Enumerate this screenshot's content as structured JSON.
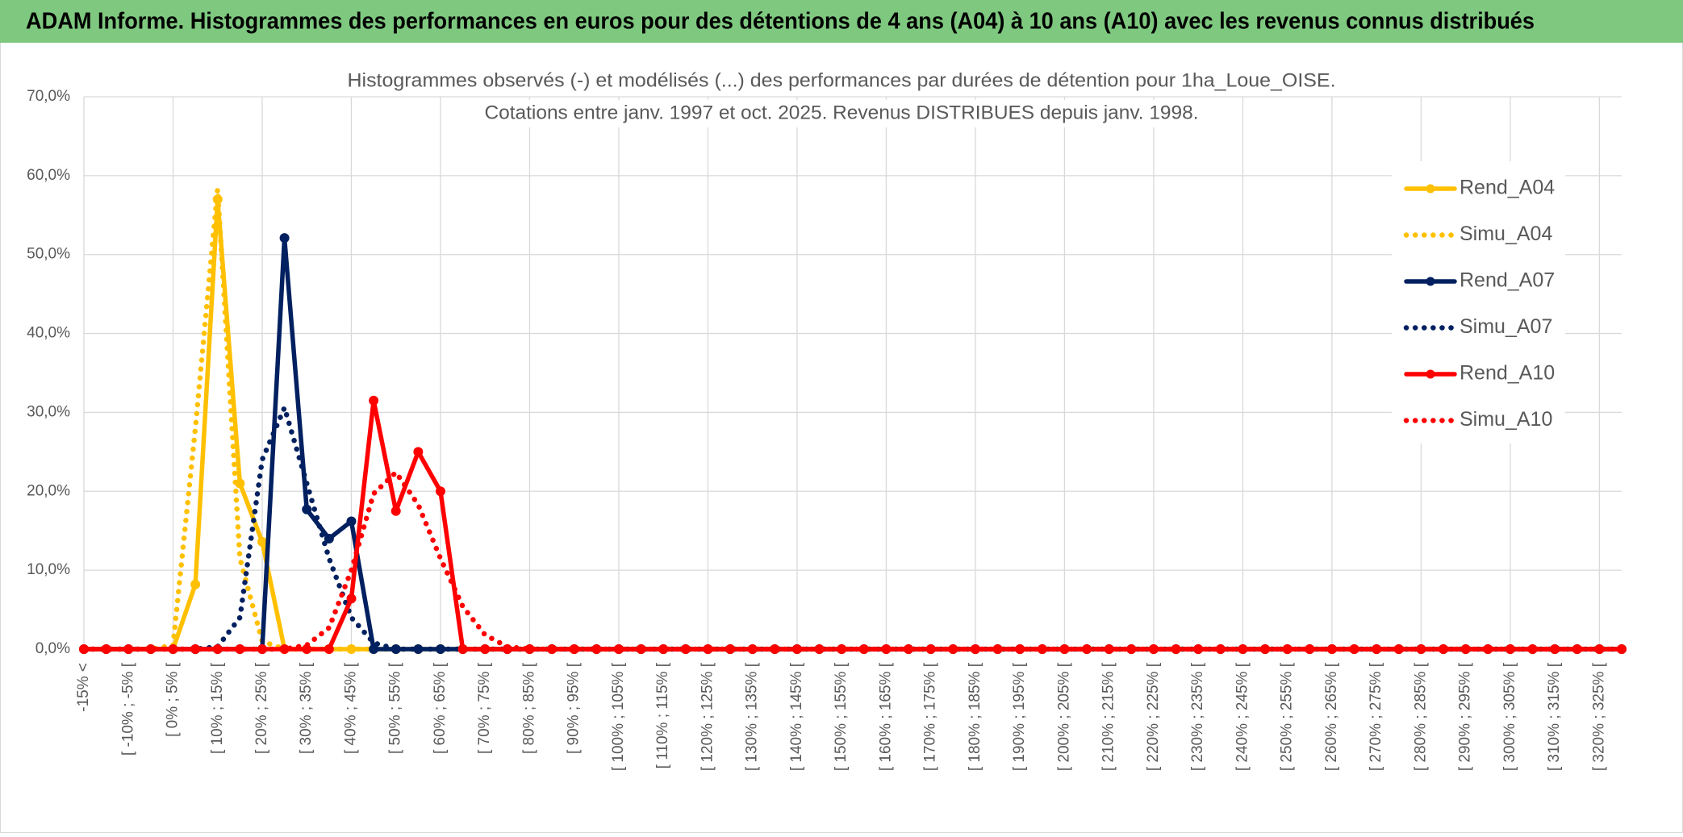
{
  "header": {
    "title": "ADAM Informe. Histogrammes des performances en euros pour des détentions de 4 ans (A04) à 10 ans (A10) avec les revenus connus distribués"
  },
  "chart_data": {
    "type": "line",
    "title": "Histogrammes observés (-) et modélisés (...) des performances par durées de détention pour 1ha_Loue_OISE.",
    "subtitle": "Cotations entre janv. 1997 et oct. 2025. Revenus DISTRIBUES depuis janv. 1998.",
    "categories": [
      "-15% <",
      null,
      "[ -10% ; -5% [",
      null,
      "[ 0% ; 5% [",
      null,
      "[ 10% ; 15% [",
      null,
      "[ 20% ; 25% [",
      null,
      "[ 30% ; 35% [",
      null,
      "[ 40% ; 45% [",
      null,
      "[ 50% ; 55% [",
      null,
      "[ 60% ; 65% [",
      null,
      "[ 70% ; 75% [",
      null,
      "[ 80% ; 85% [",
      null,
      "[ 90% ; 95% [",
      null,
      "[ 100% ; 105% [",
      null,
      "[ 110% ; 115% [",
      null,
      "[ 120% ; 125% [",
      null,
      "[ 130% ; 135% [",
      null,
      "[ 140% ; 145% [",
      null,
      "[ 150% ; 155% [",
      null,
      "[ 160% ; 165% [",
      null,
      "[ 170% ; 175% [",
      null,
      "[ 180% ; 185% [",
      null,
      "[ 190% ; 195% [",
      null,
      "[ 200% ; 205% [",
      null,
      "[ 210% ; 215% [",
      null,
      "[ 220% ; 225% [",
      null,
      "[ 230% ; 235% [",
      null,
      "[ 240% ; 245% [",
      null,
      "[ 250% ; 255% [",
      null,
      "[ 260% ; 265% [",
      null,
      "[ 270% ; 275% [",
      null,
      "[ 280% ; 285% [",
      null,
      "[ 290% ; 295% [",
      null,
      "[ 300% ; 305% [",
      null,
      "[ 310% ; 315% [",
      null,
      "[ 320% ; 325% [",
      null
    ],
    "series": [
      {
        "name": "Rend_A04",
        "color": "#FFC000",
        "style": "solid",
        "marker": true,
        "values": [
          0,
          0,
          0,
          0,
          0,
          8.2,
          57,
          21,
          13.6,
          0,
          0,
          0,
          0,
          0,
          0,
          0,
          0,
          0,
          0,
          0,
          0,
          0,
          0,
          0,
          0,
          0,
          0,
          0,
          0,
          0,
          0,
          0,
          0,
          0,
          0,
          0,
          0,
          0,
          0,
          0,
          0,
          0,
          0,
          0,
          0,
          0,
          0,
          0,
          0,
          0,
          0,
          0,
          0,
          0,
          0,
          0,
          0,
          0,
          0,
          0,
          0,
          0,
          0,
          0,
          0,
          0,
          0,
          0,
          0,
          0
        ]
      },
      {
        "name": "Simu_A04",
        "color": "#FFC000",
        "style": "dotted",
        "marker": false,
        "values": [
          0,
          0,
          0,
          0,
          0.5,
          28,
          58.3,
          11.5,
          1,
          0,
          0,
          0,
          0,
          0,
          0,
          0,
          0,
          0,
          0,
          0,
          0,
          0,
          0,
          0,
          0,
          0,
          0,
          0,
          0,
          0,
          0,
          0,
          0,
          0,
          0,
          0,
          0,
          0,
          0,
          0,
          0,
          0,
          0,
          0,
          0,
          0,
          0,
          0,
          0,
          0,
          0,
          0,
          0,
          0,
          0,
          0,
          0,
          0,
          0,
          0,
          0,
          0,
          0,
          0,
          0,
          0,
          0,
          0,
          0,
          0
        ]
      },
      {
        "name": "Rend_A07",
        "color": "#002060",
        "style": "solid",
        "marker": true,
        "values": [
          0,
          0,
          0,
          0,
          0,
          0,
          0,
          0,
          0,
          52.1,
          17.7,
          14,
          16.2,
          0,
          0,
          0,
          0,
          0,
          0,
          0,
          0,
          0,
          0,
          0,
          0,
          0,
          0,
          0,
          0,
          0,
          0,
          0,
          0,
          0,
          0,
          0,
          0,
          0,
          0,
          0,
          0,
          0,
          0,
          0,
          0,
          0,
          0,
          0,
          0,
          0,
          0,
          0,
          0,
          0,
          0,
          0,
          0,
          0,
          0,
          0,
          0,
          0,
          0,
          0,
          0,
          0,
          0,
          0,
          0,
          0
        ]
      },
      {
        "name": "Simu_A07",
        "color": "#002060",
        "style": "dotted",
        "marker": false,
        "values": [
          0,
          0,
          0,
          0,
          0,
          0,
          0.3,
          4,
          24,
          30.6,
          21,
          11.5,
          4,
          0.8,
          0,
          0,
          0,
          0,
          0,
          0,
          0,
          0,
          0,
          0,
          0,
          0,
          0,
          0,
          0,
          0,
          0,
          0,
          0,
          0,
          0,
          0,
          0,
          0,
          0,
          0,
          0,
          0,
          0,
          0,
          0,
          0,
          0,
          0,
          0,
          0,
          0,
          0,
          0,
          0,
          0,
          0,
          0,
          0,
          0,
          0,
          0,
          0,
          0,
          0,
          0,
          0,
          0,
          0,
          0,
          0
        ]
      },
      {
        "name": "Rend_A10",
        "color": "#FF0000",
        "style": "solid",
        "marker": true,
        "values": [
          0,
          0,
          0,
          0,
          0,
          0,
          0,
          0,
          0,
          0,
          0,
          0,
          6.4,
          31.5,
          17.5,
          25,
          20,
          0,
          0,
          0,
          0,
          0,
          0,
          0,
          0,
          0,
          0,
          0,
          0,
          0,
          0,
          0,
          0,
          0,
          0,
          0,
          0,
          0,
          0,
          0,
          0,
          0,
          0,
          0,
          0,
          0,
          0,
          0,
          0,
          0,
          0,
          0,
          0,
          0,
          0,
          0,
          0,
          0,
          0,
          0,
          0,
          0,
          0,
          0,
          0,
          0,
          0,
          0,
          0,
          0
        ]
      },
      {
        "name": "Simu_A10",
        "color": "#FF0000",
        "style": "dotted",
        "marker": false,
        "values": [
          0,
          0,
          0,
          0,
          0,
          0,
          0,
          0,
          0,
          0,
          0.5,
          2.7,
          10,
          19.7,
          22.4,
          18.3,
          11.5,
          5.4,
          1.8,
          0.3,
          0,
          0,
          0,
          0,
          0,
          0,
          0,
          0,
          0,
          0,
          0,
          0,
          0,
          0,
          0,
          0,
          0,
          0,
          0,
          0,
          0,
          0,
          0,
          0,
          0,
          0,
          0,
          0,
          0,
          0,
          0,
          0,
          0,
          0,
          0,
          0,
          0,
          0,
          0,
          0,
          0,
          0,
          0,
          0,
          0,
          0,
          0,
          0,
          0,
          0
        ]
      }
    ],
    "ylim": [
      0,
      70
    ],
    "yticks": [
      {
        "value": 0,
        "label": "0,0%"
      },
      {
        "value": 10,
        "label": "10,0%"
      },
      {
        "value": 20,
        "label": "20,0%"
      },
      {
        "value": 30,
        "label": "30,0%"
      },
      {
        "value": 40,
        "label": "40,0%"
      },
      {
        "value": 50,
        "label": "50,0%"
      },
      {
        "value": 60,
        "label": "60,0%"
      },
      {
        "value": 70,
        "label": "70,0%"
      }
    ],
    "grid": true,
    "legend": "right"
  }
}
